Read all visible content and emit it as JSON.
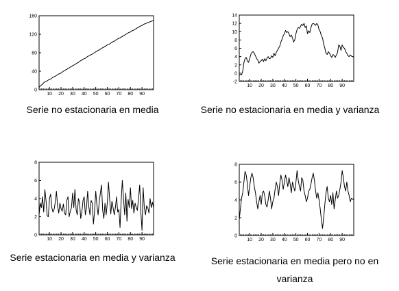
{
  "chart_data": [
    {
      "type": "line",
      "caption": "Serie no estacionaria en media",
      "xlim": [
        1,
        100
      ],
      "ylim": [
        0,
        160
      ],
      "x_ticks": [
        10,
        20,
        30,
        40,
        50,
        60,
        70,
        80,
        90
      ],
      "y_ticks": [
        0,
        40,
        80,
        120,
        160
      ],
      "series": [
        {
          "values": [
            5,
            8,
            10,
            12,
            15,
            17,
            18,
            19,
            21,
            22,
            23,
            25,
            27,
            28,
            29,
            31,
            32,
            34,
            35,
            36,
            38,
            40,
            41,
            43,
            44,
            46,
            47,
            49,
            50,
            52,
            53,
            55,
            56,
            58,
            59,
            61,
            63,
            64,
            66,
            67,
            68,
            70,
            72,
            73,
            74,
            76,
            77,
            79,
            80,
            82,
            83,
            85,
            86,
            88,
            89,
            91,
            92,
            94,
            95,
            97,
            98,
            99,
            101,
            102,
            104,
            105,
            107,
            108,
            110,
            111,
            112,
            114,
            115,
            117,
            118,
            120,
            121,
            123,
            124,
            125,
            127,
            128,
            129,
            131,
            132,
            134,
            135,
            137,
            138,
            139,
            141,
            142,
            143,
            144,
            145,
            146,
            147,
            148,
            149,
            150
          ]
        }
      ]
    },
    {
      "type": "line",
      "caption": "Serie no estacionaria en media y varianza",
      "xlim": [
        1,
        100
      ],
      "ylim": [
        -2,
        14
      ],
      "x_ticks": [
        10,
        20,
        30,
        40,
        50,
        60,
        70,
        80,
        90
      ],
      "y_ticks": [
        -2,
        0,
        2,
        4,
        6,
        8,
        10,
        12,
        14
      ],
      "series": [
        {
          "values": [
            -0.5,
            -0.3,
            -0.4,
            0.5,
            2.5,
            3.5,
            3.8,
            3.0,
            2.6,
            3.5,
            4.5,
            5.0,
            5.2,
            4.8,
            4.2,
            3.5,
            3.2,
            2.4,
            2.8,
            3.0,
            3.4,
            2.8,
            3.5,
            3.0,
            3.6,
            4.0,
            3.5,
            3.6,
            4.2,
            3.8,
            4.8,
            4.2,
            5.0,
            5.5,
            6.0,
            6.5,
            7.5,
            8.2,
            9.0,
            9.5,
            10.3,
            9.8,
            10.0,
            9.5,
            8.8,
            9.2,
            8.5,
            7.5,
            8.0,
            9.5,
            10.5,
            11.0,
            10.8,
            11.3,
            11.8,
            11.5,
            12.0,
            11.0,
            11.4,
            9.5,
            10.2,
            9.8,
            11.0,
            11.8,
            12.0,
            11.8,
            11.5,
            12.0,
            11.6,
            10.5,
            10.0,
            9.0,
            8.5,
            7.0,
            6.0,
            4.8,
            4.5,
            5.2,
            4.8,
            4.2,
            3.8,
            4.5,
            4.3,
            3.8,
            4.4,
            5.0,
            6.8,
            6.5,
            5.5,
            6.8,
            6.2,
            6.0,
            5.2,
            4.8,
            4.2,
            4.0,
            4.4,
            4.1,
            4.0,
            3.9
          ]
        }
      ]
    },
    {
      "type": "line",
      "caption": "Serie estacionaria en media y varianza",
      "xlim": [
        1,
        100
      ],
      "ylim": [
        0,
        8
      ],
      "x_ticks": [
        10,
        20,
        30,
        40,
        50,
        60,
        70,
        80,
        90
      ],
      "y_ticks": [
        0,
        2,
        4,
        6,
        8
      ],
      "series": [
        {
          "values": [
            2.2,
            3.5,
            3.0,
            4.2,
            2.5,
            5.0,
            3.8,
            2.1,
            2.0,
            4.0,
            4.5,
            3.0,
            2.5,
            2.8,
            3.6,
            4.8,
            3.2,
            2.4,
            3.5,
            2.9,
            2.6,
            3.4,
            2.4,
            2.2,
            3.8,
            4.2,
            2.0,
            2.6,
            3.0,
            4.6,
            3.0,
            5.0,
            2.8,
            2.2,
            4.0,
            3.6,
            1.8,
            2.5,
            3.8,
            4.2,
            2.2,
            3.0,
            4.8,
            3.1,
            2.2,
            3.8,
            3.5,
            1.2,
            2.6,
            4.8,
            3.3,
            2.2,
            3.6,
            4.6,
            5.5,
            2.7,
            1.8,
            3.5,
            2.2,
            3.5,
            5.8,
            4.0,
            2.3,
            3.7,
            3.0,
            2.2,
            3.0,
            4.2,
            2.5,
            2.8,
            0.8,
            3.8,
            6.0,
            4.0,
            2.2,
            4.6,
            1.5,
            3.9,
            3.0,
            5.2,
            2.9,
            3.8,
            2.4,
            3.5,
            3.0,
            2.7,
            4.0,
            5.5,
            2.5,
            0.5,
            5.2,
            3.0,
            2.2,
            3.2,
            3.0,
            2.4,
            4.0,
            3.0,
            3.6,
            3.0
          ]
        }
      ]
    },
    {
      "type": "line",
      "caption": "Serie estacionaria en media pero no en varianza",
      "xlim": [
        1,
        100
      ],
      "ylim": [
        0,
        8
      ],
      "x_ticks": [
        10,
        20,
        30,
        40,
        50,
        60,
        70,
        80,
        90
      ],
      "y_ticks": [
        0,
        2,
        4,
        6,
        8
      ],
      "series": [
        {
          "values": [
            1.8,
            3.0,
            4.2,
            4.8,
            6.0,
            7.2,
            6.8,
            5.8,
            4.5,
            5.5,
            6.5,
            7.0,
            6.5,
            5.5,
            4.8,
            3.8,
            3.0,
            3.8,
            4.5,
            3.5,
            4.8,
            5.0,
            4.5,
            3.5,
            3.2,
            4.0,
            5.0,
            4.2,
            3.0,
            3.8,
            4.2,
            5.2,
            6.0,
            5.5,
            4.5,
            5.8,
            6.8,
            6.2,
            5.2,
            6.0,
            6.8,
            6.2,
            5.5,
            6.5,
            5.8,
            4.8,
            6.0,
            5.5,
            5.0,
            6.0,
            7.3,
            6.2,
            5.5,
            5.0,
            6.5,
            6.2,
            5.0,
            4.5,
            3.8,
            4.2,
            5.0,
            5.2,
            5.8,
            6.5,
            7.0,
            6.2,
            5.0,
            4.2,
            4.8,
            4.0,
            3.0,
            1.8,
            0.8,
            2.0,
            3.5,
            4.8,
            5.5,
            4.2,
            3.8,
            4.5,
            3.5,
            4.8,
            3.0,
            4.0,
            5.0,
            4.2,
            4.5,
            5.2,
            6.0,
            7.3,
            6.5,
            5.5,
            5.0,
            6.0,
            5.0,
            4.5,
            3.8,
            4.2,
            4.1,
            4.0
          ]
        }
      ]
    }
  ]
}
